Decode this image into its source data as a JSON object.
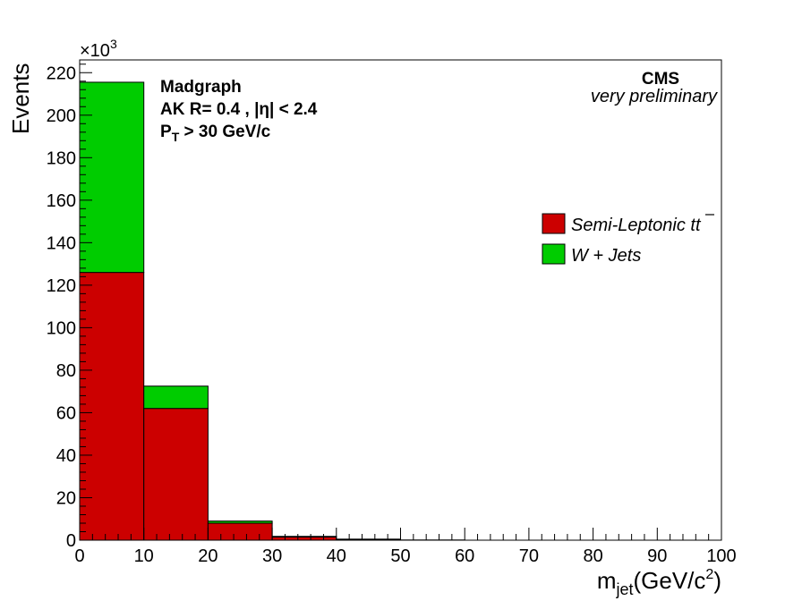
{
  "chart_data": {
    "type": "bar",
    "stacked": true,
    "bin_edges": [
      0,
      10,
      20,
      30,
      40,
      50,
      60,
      70,
      80,
      90,
      100
    ],
    "series": [
      {
        "name": "Semi-Leptonic tt",
        "color": "#cc0000",
        "values": [
          126,
          62,
          8,
          1.5,
          0.4,
          0.1,
          0,
          0,
          0,
          0
        ]
      },
      {
        "name": "W + Jets",
        "color": "#00cc00",
        "values": [
          89.5,
          10.5,
          1,
          0.3,
          0.1,
          0,
          0,
          0,
          0,
          0
        ]
      }
    ],
    "xlim": [
      0,
      100
    ],
    "ylim": [
      0,
      226
    ],
    "x_ticks": [
      "0",
      "10",
      "20",
      "30",
      "40",
      "50",
      "60",
      "70",
      "80",
      "90",
      "100"
    ],
    "y_ticks": [
      "0",
      "20",
      "40",
      "60",
      "80",
      "100",
      "120",
      "140",
      "160",
      "180",
      "200",
      "220"
    ],
    "y_multiplier": "×10",
    "y_multiplier_exp": "3",
    "ylabel": "Events",
    "xlabel": {
      "main": "m",
      "sub": "jet",
      "unit": "(GeV/c",
      "sup": "2",
      "close": ")"
    },
    "legend_position": "right",
    "grid": false
  },
  "annotations": {
    "generator": "Madgraph",
    "jet_line": "AK R= 0.4 , |η| < 2.4",
    "pt_main": "P",
    "pt_sub": "T",
    "pt_rest": " > 30 GeV/c",
    "experiment": "CMS",
    "status": "very preliminary"
  },
  "legend": {
    "semilep_prefix": "Semi-Leptonic ",
    "semilep_t1": "t",
    "semilep_t2": "t",
    "wjets": "W + Jets"
  }
}
